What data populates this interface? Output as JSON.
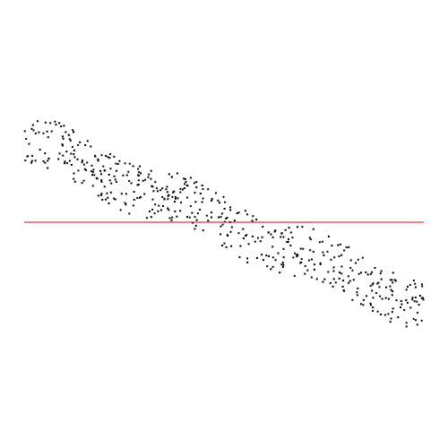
{
  "chart_data": {
    "type": "scatter",
    "title": "",
    "xlabel": "",
    "ylabel": "",
    "grid": false,
    "legend": "none",
    "xlim": [
      0,
      1
    ],
    "ylim": [
      -1,
      1
    ],
    "colors": {
      "points": "#000000",
      "reference_line": "#e00000",
      "background": "#ffffff"
    },
    "reference_line": {
      "y": 0.0
    },
    "trend": {
      "slope": -1.04,
      "intercept": 0.52
    },
    "band_half_width": 0.16,
    "wave": {
      "amplitude": 0.035,
      "cycles": 3.0
    },
    "n_points": 500,
    "series": [
      {
        "x_range": [
          0.0,
          1.0
        ]
      }
    ]
  }
}
